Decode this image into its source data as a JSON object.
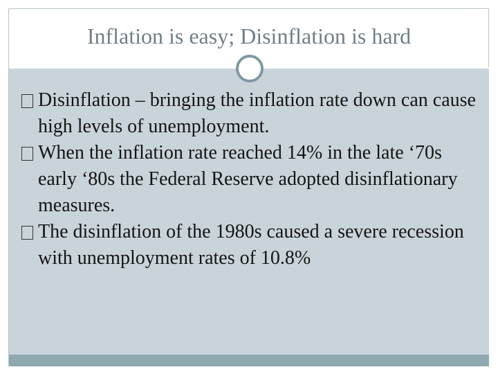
{
  "slide": {
    "title": "Inflation is easy; Disinflation is hard",
    "bullets": [
      "Disinflation – bringing the inflation rate down can cause high levels of unemployment.",
      "When the inflation rate reached 14% in the late ‘70s early ‘80s the Federal Reserve adopted disinflationary measures.",
      "The disinflation of the 1980s caused a severe recession with unemployment rates of 10.8%"
    ]
  }
}
